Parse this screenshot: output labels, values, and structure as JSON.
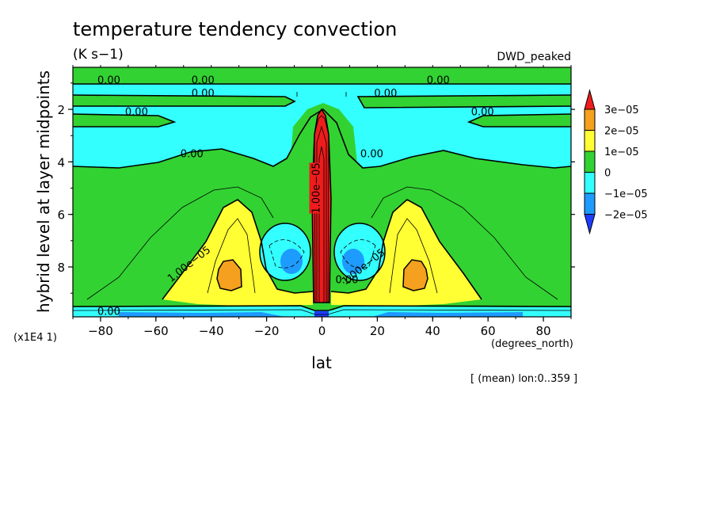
{
  "chart_data": {
    "type": "contour",
    "title": "temperature tendency convection",
    "units": "(K s−1)",
    "experiment": "DWD_peaked",
    "xlabel": "lat",
    "xunits": "(degrees_north)",
    "ylabel": "hybrid level at layer midpoints",
    "yscale_note": "(x1E4 1)",
    "averaging_note": "[ (mean) lon:0..359 ]",
    "xlim": [
      -90,
      90
    ],
    "ylim": [
      9.9,
      0.4
    ],
    "xticks": [
      -80,
      -60,
      -40,
      -20,
      0,
      20,
      40,
      60,
      80
    ],
    "xtick_labels": [
      "−80",
      "−60",
      "−40",
      "−20",
      "0",
      "20",
      "40",
      "60",
      "80"
    ],
    "yticks": [
      2,
      4,
      6,
      8
    ],
    "ytick_labels": [
      "2",
      "4",
      "6",
      "8"
    ],
    "colorbar": {
      "levels": [
        "3e−05",
        "2e−05",
        "1e−05",
        "0",
        "−1e−05",
        "−2e−05"
      ],
      "colors": [
        "#ee1c1c",
        "#f5a01e",
        "#ffff33",
        "#32d232",
        "#33ffff",
        "#1e9bff",
        "#1e3cff"
      ]
    },
    "contour_labels": [
      {
        "text": "0.00",
        "lat": -77,
        "lev": 0.9
      },
      {
        "text": "0.00",
        "lat": -43,
        "lev": 0.9
      },
      {
        "text": "0.00",
        "lat": 42,
        "lev": 0.9
      },
      {
        "text": "0.00",
        "lat": -43,
        "lev": 1.4
      },
      {
        "text": "0.00",
        "lat": 23,
        "lev": 1.4
      },
      {
        "text": "0.00",
        "lat": -67,
        "lev": 2.1
      },
      {
        "text": "0.00",
        "lat": 58,
        "lev": 2.1
      },
      {
        "text": "0.00",
        "lat": -47,
        "lev": 3.7
      },
      {
        "text": "0.00",
        "lat": 18,
        "lev": 3.7
      },
      {
        "text": "1.00e−05",
        "lat": -48,
        "lev": 7.9
      },
      {
        "text": "0.00",
        "lat": 9,
        "lev": 8.5
      },
      {
        "text": "1.00e−05",
        "lat": 15,
        "lev": 8.0
      },
      {
        "text": "1.00e−05",
        "lat": -2,
        "lev": 5.0
      },
      {
        "text": "0.00",
        "lat": -77,
        "lev": 9.7
      }
    ]
  }
}
